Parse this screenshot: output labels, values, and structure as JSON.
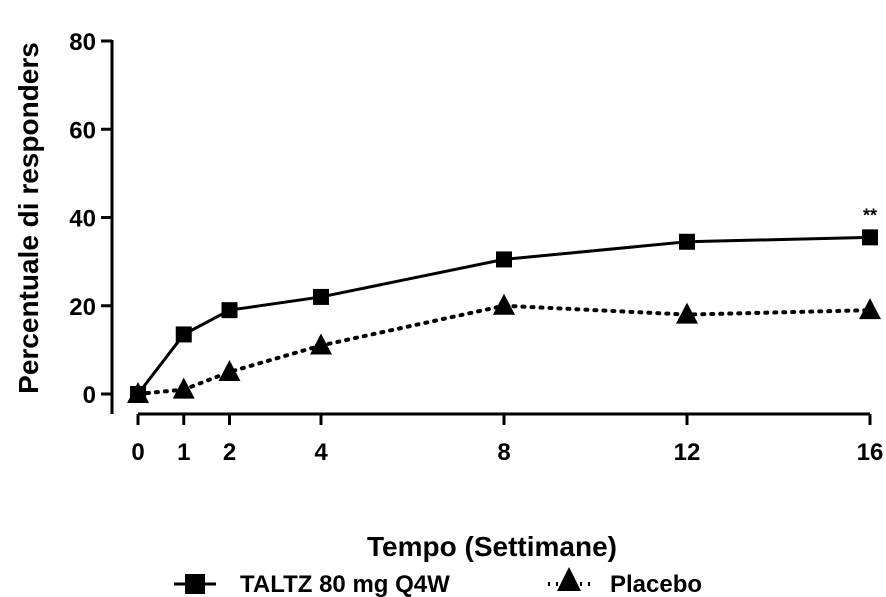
{
  "chart_data": {
    "type": "line",
    "title": "",
    "xlabel": "Tempo (Settimane)",
    "ylabel": "Percentuale di responders",
    "x": [
      0,
      1,
      2,
      4,
      8,
      12,
      16
    ],
    "xticks": [
      "0",
      "1",
      "2",
      "4",
      "8",
      "12",
      "16"
    ],
    "yticks": [
      "0",
      "20",
      "40",
      "60",
      "80"
    ],
    "xlim": [
      0,
      16
    ],
    "ylim": [
      0,
      80
    ],
    "grid": false,
    "legend_position": "bottom",
    "series": [
      {
        "name": "TALTZ 80 mg Q4W",
        "values": [
          0,
          13.5,
          19,
          22,
          30.5,
          34.5,
          35.5
        ],
        "marker": "square",
        "line_style": "solid",
        "color": "#000000"
      },
      {
        "name": "Placebo",
        "values": [
          0,
          1,
          5,
          11,
          20,
          18,
          19
        ],
        "marker": "triangle",
        "line_style": "dotted",
        "color": "#000000"
      }
    ],
    "annotations": [
      {
        "text": "**",
        "x": 16,
        "y": 35.5
      }
    ]
  }
}
